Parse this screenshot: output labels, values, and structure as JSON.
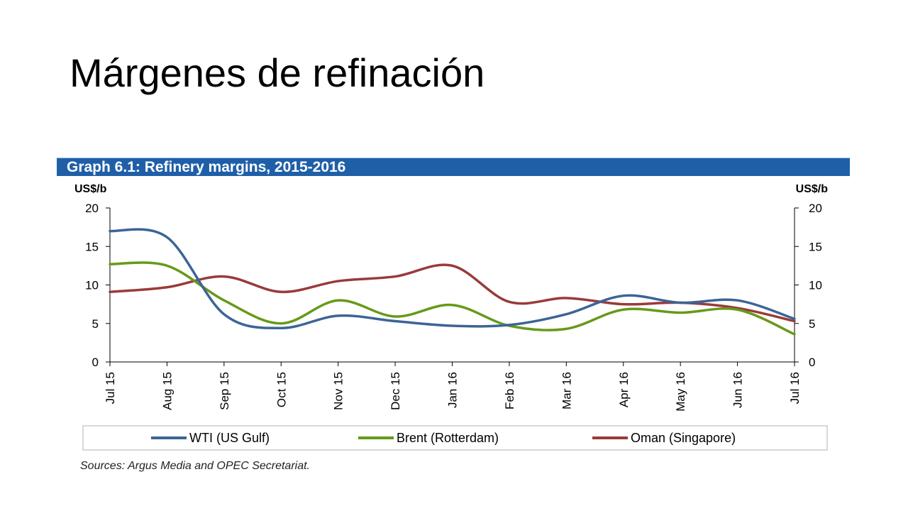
{
  "slide": {
    "title": "Márgenes de refinación",
    "source": "Sources: Argus Media and OPEC Secretariat."
  },
  "chart_data": {
    "type": "line",
    "title": "Graph 6.1: Refinery margins, 2015-2016",
    "ylabel_left": "US$/b",
    "ylabel_right": "US$/b",
    "ylim": [
      0,
      20
    ],
    "yticks": [
      0,
      5,
      10,
      15,
      20
    ],
    "grid": false,
    "legend_position": "bottom",
    "categories": [
      "Jul 15",
      "Aug 15",
      "Sep 15",
      "Oct 15",
      "Nov 15",
      "Dec 15",
      "Jan 16",
      "Feb 16",
      "Mar 16",
      "Apr 16",
      "May 16",
      "Jun 16",
      "Jul 16"
    ],
    "series": [
      {
        "name": "WTI (US Gulf)",
        "color": "#3c6496",
        "values": [
          17.0,
          16.2,
          6.2,
          4.4,
          6.0,
          5.3,
          4.7,
          4.8,
          6.2,
          8.6,
          7.7,
          8.0,
          5.6
        ]
      },
      {
        "name": "Brent (Rotterdam)",
        "color": "#669a18",
        "values": [
          12.7,
          12.5,
          8.0,
          5.0,
          8.0,
          5.9,
          7.4,
          4.7,
          4.3,
          6.8,
          6.4,
          6.8,
          3.6
        ]
      },
      {
        "name": "Oman (Singapore)",
        "color": "#9a3a3a",
        "values": [
          9.1,
          9.7,
          11.1,
          9.1,
          10.5,
          11.1,
          12.5,
          7.8,
          8.3,
          7.5,
          7.7,
          7.0,
          5.3
        ]
      }
    ]
  }
}
